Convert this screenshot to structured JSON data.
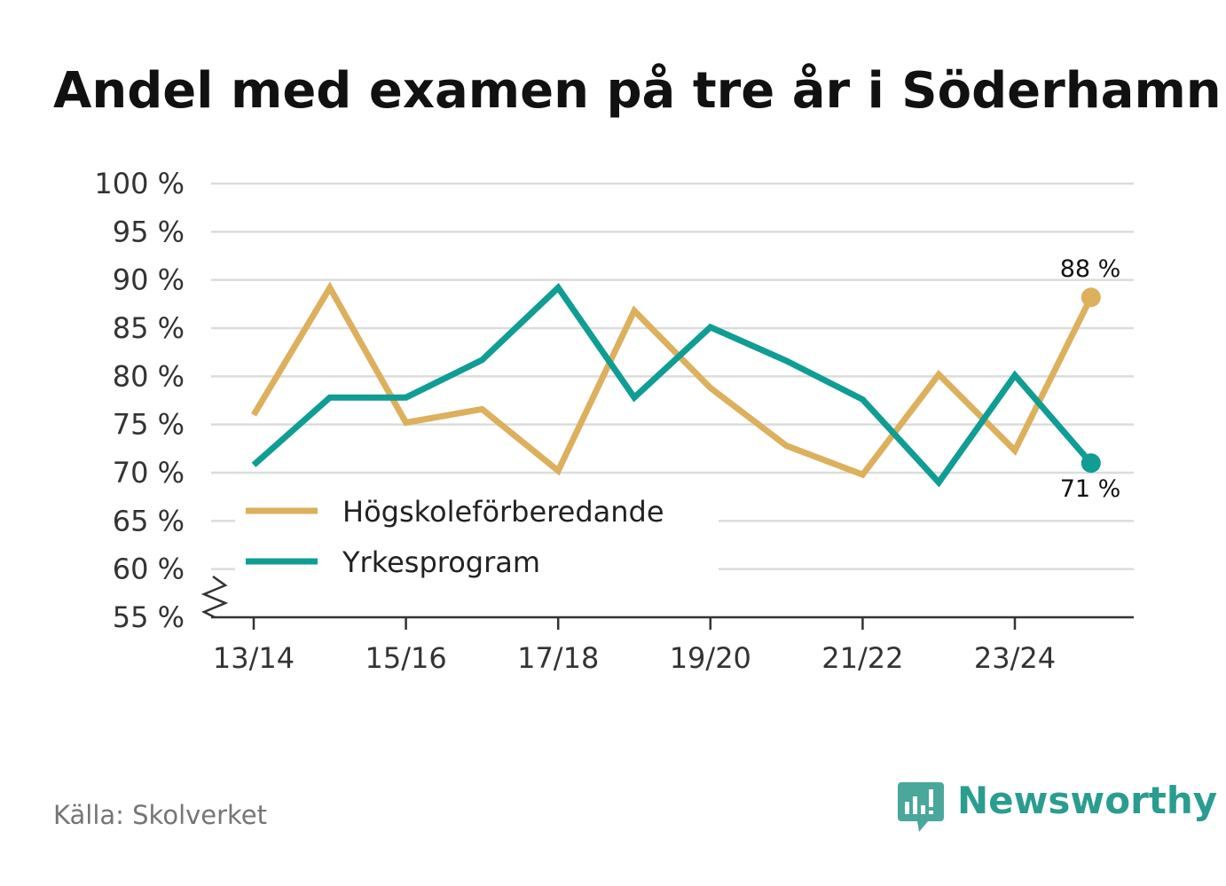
{
  "chart_data": {
    "type": "line",
    "title": "Andel med examen på tre år i Söderhamn",
    "categories": [
      "13/14",
      "14/15",
      "15/16",
      "16/17",
      "17/18",
      "18/19",
      "19/20",
      "20/21",
      "21/22",
      "22/23",
      "23/24",
      "24/25"
    ],
    "x_tick_labels": [
      "13/14",
      "15/16",
      "17/18",
      "19/20",
      "21/22",
      "23/24"
    ],
    "y_ticks": [
      100,
      95,
      90,
      85,
      80,
      75,
      70,
      65,
      60,
      55
    ],
    "y_unit": "%",
    "ylim": [
      55,
      100
    ],
    "axis_break": true,
    "series": [
      {
        "name": "Högskoleförberedande",
        "color": "#dcb05c",
        "values": [
          76.0,
          89.2,
          75.2,
          76.6,
          70.2,
          86.8,
          78.8,
          72.8,
          69.8,
          80.2,
          72.3,
          88.2
        ],
        "end_label": "88 %"
      },
      {
        "name": "Yrkesprogram",
        "color": "#0f9d94",
        "values": [
          70.8,
          77.8,
          77.8,
          81.7,
          89.2,
          77.8,
          85.1,
          81.6,
          77.6,
          69.0,
          80.1,
          71.0
        ],
        "end_label": "71 %"
      }
    ],
    "legend_position": "bottom-left (inside plot)",
    "grid": true,
    "source": "Källa: Skolverket",
    "brand": "Newsworthy",
    "brand_color": "#2a9d8f"
  }
}
